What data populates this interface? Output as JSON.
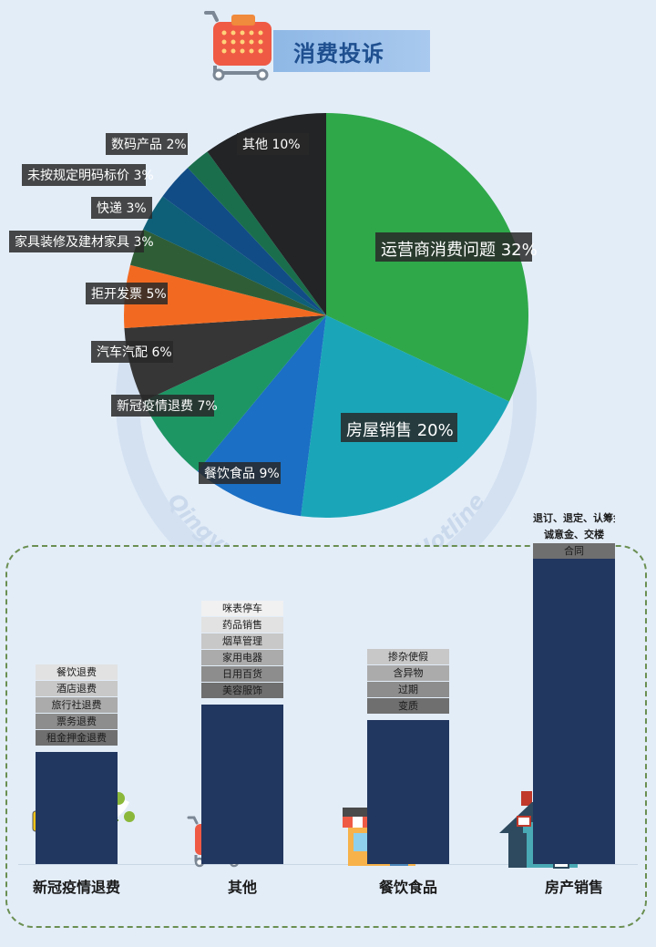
{
  "header": {
    "title": "消费投诉"
  },
  "watermark": "Qingyuan Government Hotline",
  "chart_data": [
    {
      "type": "pie",
      "title": "",
      "slices": [
        {
          "label": "运营商消费问题",
          "value": 32,
          "display": "运营商消费问题 32%",
          "color": "#2fa84a"
        },
        {
          "label": "房屋销售",
          "value": 20,
          "display": "房屋销售 20%",
          "color": "#1aa6b8"
        },
        {
          "label": "餐饮食品",
          "value": 9,
          "display": "餐饮食品 9%",
          "color": "#1b6fc4"
        },
        {
          "label": "新冠疫情退费",
          "value": 7,
          "display": "新冠疫情退费 7%",
          "color": "#1d9664"
        },
        {
          "label": "汽车汽配",
          "value": 6,
          "display": "汽车汽配 6%",
          "color": "#363636"
        },
        {
          "label": "拒开发票",
          "value": 5,
          "display": "拒开发票 5%",
          "color": "#f26a21"
        },
        {
          "label": "家具装修及建材家具",
          "value": 3,
          "display": "家具装修及建材家具 3%",
          "color": "#2f5e36"
        },
        {
          "label": "快递",
          "value": 3,
          "display": "快递 3%",
          "color": "#0e5f78"
        },
        {
          "label": "未按规定明码标价",
          "value": 3,
          "display": "未按规定明码标价 3%",
          "color": "#124c86"
        },
        {
          "label": "数码产品",
          "value": 2,
          "display": "数码产品 2%",
          "color": "#1a6e4c"
        },
        {
          "label": "其他",
          "value": 10,
          "display": "其他 10%",
          "color": "#222426"
        }
      ]
    },
    {
      "type": "bar",
      "title": "",
      "categories": [
        "新冠疫情退费",
        "其他",
        "餐饮食品",
        "房产销售"
      ],
      "values": [
        7,
        10,
        9,
        20
      ],
      "stack_labels": [
        [
          "租金押金退费",
          "票务退费",
          "旅行社退费",
          "酒店退费",
          "餐饮退费"
        ],
        [
          "美容服饰",
          "日用百货",
          "家用电器",
          "烟草管理",
          "药品销售",
          "咪表停车"
        ],
        [
          "变质",
          "过期",
          "含异物",
          "掺杂使假"
        ],
        [
          "合同",
          "诚意金、交楼",
          "退订、退定、认筹金、"
        ]
      ]
    }
  ]
}
